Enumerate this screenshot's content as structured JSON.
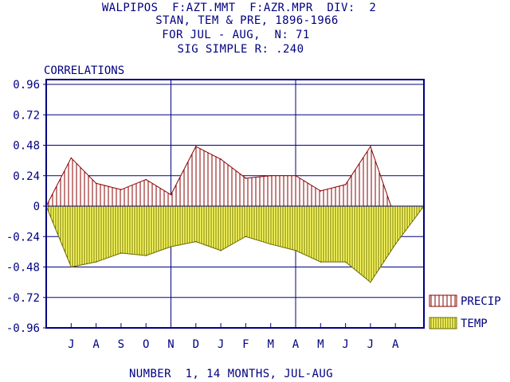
{
  "header": {
    "line1": "WALPIPOS  F:AZT.MMT  F:AZR.MPR  DIV:  2",
    "line2": "STAN, TEM & PRE, 1896-1966",
    "line3": "FOR JUL - AUG,  N: 71",
    "line4": "SIG SIMPLE R: .240"
  },
  "footer": "NUMBER  1, 14 MONTHS, JUL-AUG",
  "colors": {
    "axis": "#000080",
    "precip_stroke": "#8b0000",
    "temp_stroke": "#6b6b00",
    "temp_fill": "#ffff66"
  },
  "chart_data": {
    "type": "area",
    "ylabel": "CORRELATIONS",
    "ylim": [
      -0.96,
      0.96
    ],
    "yticks": [
      "0.96",
      "0.72",
      "0.48",
      "0.24",
      "0",
      "-0.24",
      "-0.48",
      "-0.72",
      "-0.96"
    ],
    "categories": [
      "J",
      "A",
      "S",
      "O",
      "N",
      "D",
      "J",
      "F",
      "M",
      "A",
      "M",
      "J",
      "J",
      "A"
    ],
    "start_value": 0,
    "end_value": 0,
    "series": [
      {
        "name": "PRECIP",
        "values": [
          0.38,
          0.18,
          0.13,
          0.21,
          0.09,
          0.47,
          0.37,
          0.22,
          0.24,
          0.24,
          0.12,
          0.17,
          0.47,
          -0.1
        ]
      },
      {
        "name": "TEMP",
        "values": [
          -0.48,
          -0.44,
          -0.37,
          -0.39,
          -0.32,
          -0.28,
          -0.35,
          -0.24,
          -0.3,
          -0.35,
          -0.44,
          -0.44,
          -0.6,
          -0.3
        ]
      }
    ],
    "legend_position": "bottom-right",
    "grid": true
  }
}
